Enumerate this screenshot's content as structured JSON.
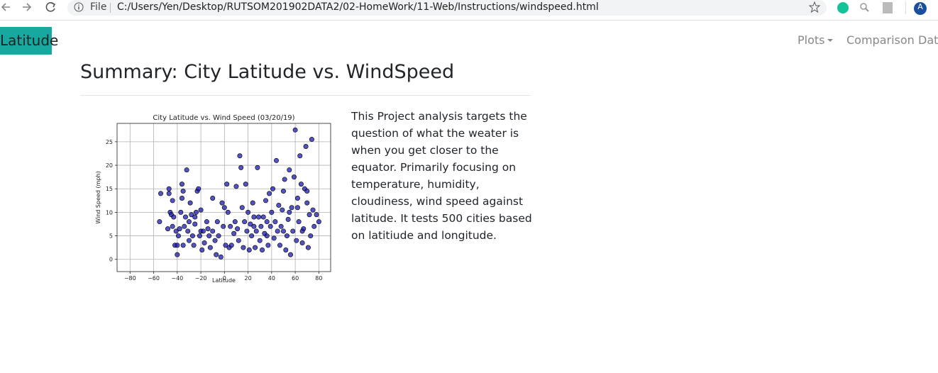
{
  "browser": {
    "scheme": "File",
    "url": "C:/Users/Yen/Desktop/RUTSOM201902DATA2/02-HomeWork/11-Web/Instructions/windspeed.html",
    "profile": "A"
  },
  "navbar": {
    "brand": "Latitude",
    "items": [
      "Plots",
      "Comparison",
      "Data"
    ]
  },
  "heading": "Summary: City Latitude vs. WindSpeed",
  "paragraph": "This Project analysis targets the question of what the weater is when you get closer to the equator. Primarily focusing on temperature, humidity, cloudiness, wind speed against latitude. It tests 500 cities based on latitiude and longitude.",
  "chart_data": {
    "type": "scatter",
    "title": "City Latitude vs. Wind Speed (03/20/19)",
    "x_label": "Latitude",
    "y_label": "Wind Speed (mph)",
    "color": "#1a1ab0",
    "grid": true,
    "xlim": [
      -91,
      90
    ],
    "ylim": [
      -2.6,
      28.9
    ],
    "xticks": [
      {
        "value": -80,
        "label": "−80"
      },
      {
        "value": -60,
        "label": "−60"
      },
      {
        "value": -40,
        "label": "−40"
      },
      {
        "value": -20,
        "label": "−20"
      },
      0,
      20,
      40,
      60,
      80
    ],
    "yticks": [
      0,
      5,
      10,
      15,
      20,
      25
    ],
    "x": [
      -55,
      -54,
      -47,
      -47,
      -46,
      -45,
      -44,
      -44,
      -43,
      -42,
      -41,
      -40,
      -39,
      -38,
      -37,
      -36,
      -36,
      -35,
      -35,
      -34,
      -33,
      -32,
      -31,
      -30,
      -30,
      -29,
      -28,
      -27,
      -26,
      -25,
      -24,
      -23,
      -22,
      -21,
      -20,
      -19,
      -18,
      -17,
      -15,
      -14,
      -13,
      -12,
      -10,
      -8,
      -7,
      -6,
      -5,
      -3,
      -2,
      -1,
      0,
      1,
      2,
      3,
      4,
      5,
      6,
      8,
      9,
      10,
      11,
      12,
      13,
      14,
      15,
      16,
      17,
      18,
      19,
      20,
      21,
      22,
      23,
      24,
      25,
      26,
      27,
      28,
      29,
      30,
      31,
      32,
      33,
      34,
      35,
      36,
      37,
      38,
      39,
      40,
      41,
      42,
      43,
      44,
      45,
      46,
      47,
      48,
      49,
      50,
      51,
      52,
      53,
      54,
      55,
      56,
      57,
      58,
      59,
      60,
      61,
      62,
      63,
      64,
      65,
      66,
      67,
      68,
      69,
      70,
      71,
      72,
      73,
      74,
      75,
      76,
      78,
      80,
      -48,
      -40,
      -25,
      -20,
      -10,
      25,
      36,
      50,
      55,
      62,
      66,
      70
    ],
    "values": [
      8,
      14,
      15,
      14,
      10,
      9.5,
      12.5,
      7,
      9,
      3,
      6,
      1,
      5,
      6.5,
      10,
      13,
      16,
      14.5,
      3,
      7,
      9,
      19,
      6,
      8,
      4,
      12,
      9.5,
      5,
      3,
      7.5,
      10,
      14.5,
      15,
      5,
      6,
      2,
      6,
      3.5,
      8,
      6.5,
      5,
      2.5,
      13,
      4,
      1,
      8,
      5,
      0.5,
      12,
      7,
      11,
      3,
      16,
      10,
      2.5,
      7,
      3,
      5.5,
      8,
      15.5,
      6.5,
      4,
      22,
      19.5,
      11,
      2.5,
      8,
      16,
      6,
      10,
      2,
      7.5,
      5,
      12,
      9,
      2.5,
      6,
      19.5,
      9,
      4,
      7,
      2,
      9,
      5.5,
      12.5,
      8,
      3,
      14,
      7,
      10,
      15,
      4.5,
      8,
      21,
      6,
      11.5,
      3,
      7,
      10.5,
      14.5,
      17,
      2,
      5,
      8.5,
      19,
      1,
      11,
      6,
      17.5,
      27.5,
      4,
      11,
      8,
      22,
      16,
      3.5,
      6.5,
      15,
      24,
      12,
      2.5,
      9.5,
      5,
      25.5,
      10.5,
      7,
      9.5,
      8,
      6.5,
      3,
      9,
      10.5,
      6,
      7,
      5,
      6,
      10,
      13,
      6,
      14.5
    ]
  }
}
